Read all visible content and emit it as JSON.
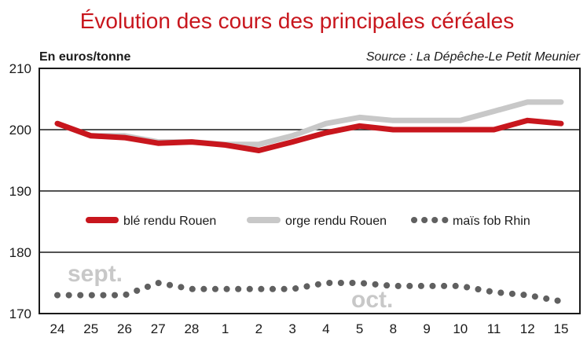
{
  "chart_data": {
    "type": "line",
    "title": "Évolution des cours des principales céréales",
    "ylabel": "En euros/tonne",
    "source": "Source : La Dépêche-Le Petit Meunier",
    "ylim": [
      170,
      210
    ],
    "yticks": [
      170,
      180,
      190,
      200,
      210
    ],
    "categories": [
      "24",
      "25",
      "26",
      "27",
      "28",
      "1",
      "2",
      "3",
      "4",
      "5",
      "8",
      "9",
      "10",
      "11",
      "12",
      "15"
    ],
    "month_labels": [
      "sept.",
      "oct."
    ],
    "grid": true,
    "legend_position": "middle",
    "series": [
      {
        "name": "blé rendu Rouen",
        "color": "#c8161d",
        "style": "solid",
        "values": [
          201,
          199,
          198.7,
          197.8,
          198,
          197.5,
          196.6,
          198,
          199.5,
          200.6,
          200,
          200,
          200,
          200,
          201.5,
          201
        ]
      },
      {
        "name": "orge rendu Rouen",
        "color": "#c8c8c8",
        "style": "solid",
        "values": [
          201,
          199,
          199,
          198,
          198,
          197.6,
          197.6,
          199,
          201,
          202,
          201.5,
          201.5,
          201.5,
          203,
          204.5,
          204.5
        ]
      },
      {
        "name": "maïs fob Rhin",
        "color": "#606060",
        "style": "dotted",
        "values": [
          173,
          173,
          173,
          175,
          174,
          174,
          174,
          174,
          175,
          175,
          174.5,
          174.5,
          174.5,
          173.5,
          173,
          172
        ]
      }
    ]
  }
}
